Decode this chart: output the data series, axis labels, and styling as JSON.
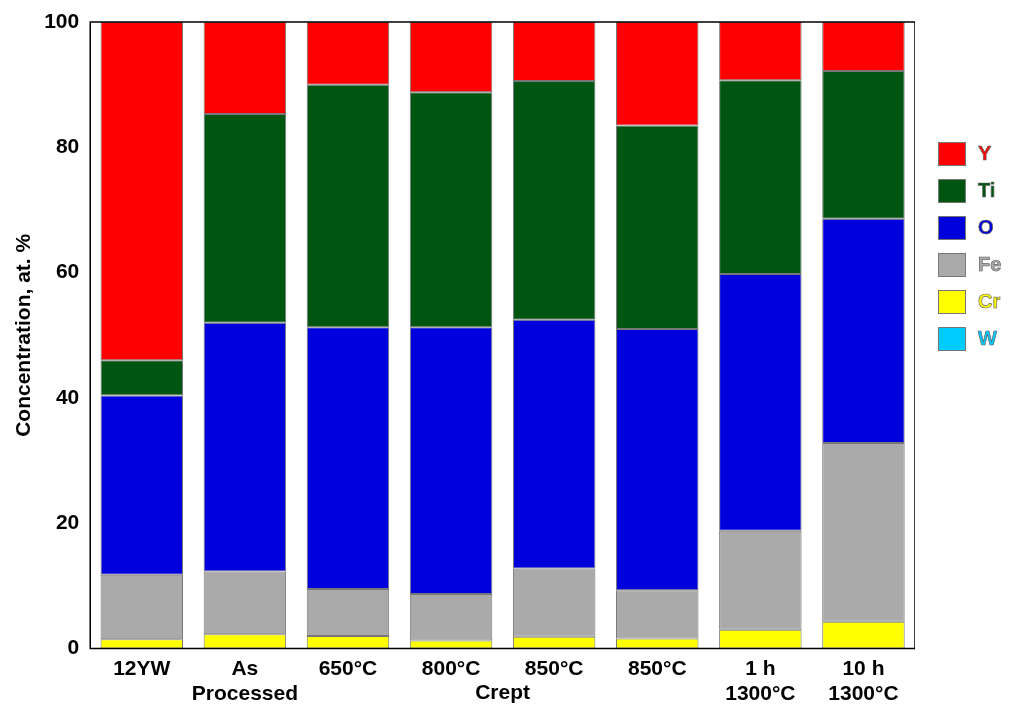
{
  "chart_data": {
    "type": "bar",
    "stacked": true,
    "ylabel": "Concentration, at. %",
    "categories": [
      "12YW",
      "As\nProcessed",
      "650°C",
      "800°C",
      "850°C",
      "850°C",
      "1 h\n1300°C",
      "10 h\n1300°C"
    ],
    "series": [
      {
        "name": "W",
        "color": "#00ccff",
        "values": [
          0,
          0,
          0,
          0,
          0,
          0,
          0,
          0
        ]
      },
      {
        "name": "Cr",
        "color": "#ffff00",
        "values": [
          1.5,
          2.3,
          2,
          1.3,
          1.9,
          1.6,
          3,
          4.3
        ]
      },
      {
        "name": "Fe",
        "color": "#aaaaaa",
        "values": [
          10.3,
          10,
          7.5,
          7.4,
          10.9,
          7.7,
          15.8,
          28.5
        ]
      },
      {
        "name": "O",
        "color": "#0000dd",
        "values": [
          28.6,
          39.7,
          41.8,
          42.6,
          39.7,
          41.7,
          41,
          35.8
        ]
      },
      {
        "name": "Ti",
        "color": "#005511",
        "values": [
          5.6,
          33.3,
          38.7,
          37.5,
          38.1,
          32.5,
          30.9,
          23.6
        ]
      },
      {
        "name": "Y",
        "color": "#ff0000",
        "values": [
          54,
          14.7,
          10,
          11.2,
          9.4,
          16.5,
          9.3,
          7.8
        ]
      }
    ],
    "ylim": [
      0,
      100
    ],
    "yticks": [
      0,
      20,
      40,
      60,
      80,
      100
    ],
    "legend": "right",
    "annotations": [
      "Crept"
    ]
  }
}
